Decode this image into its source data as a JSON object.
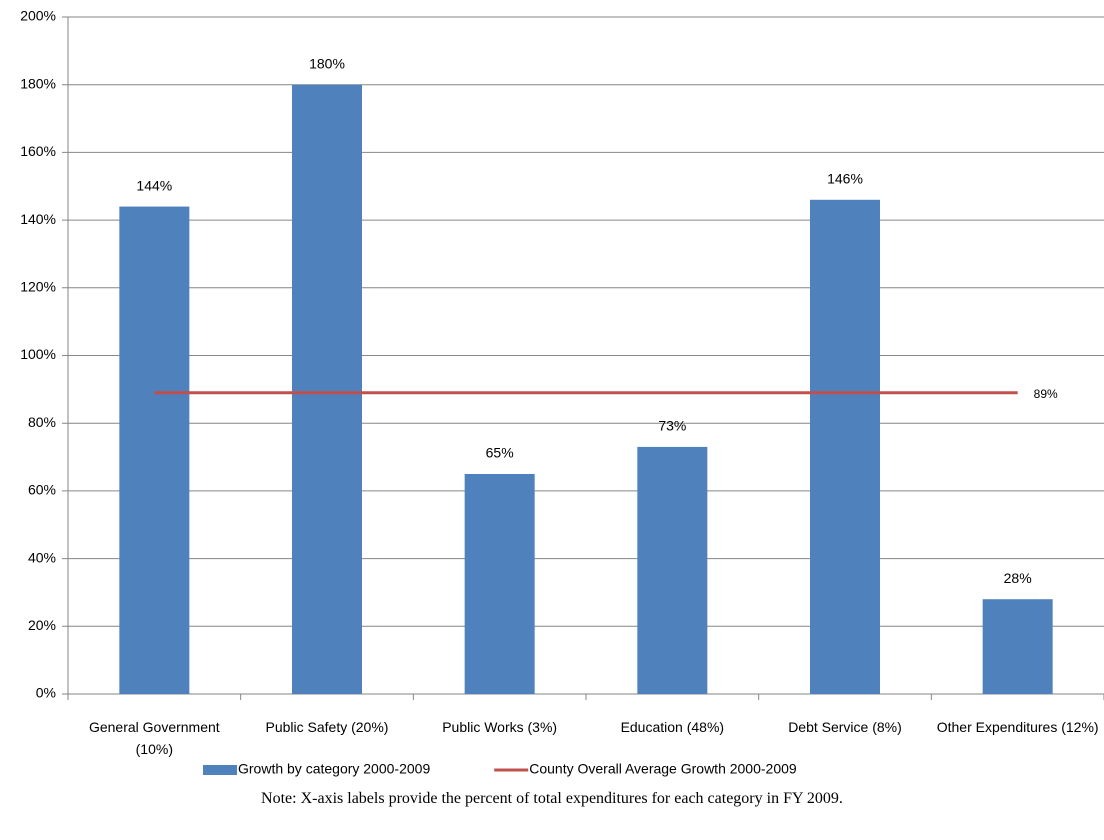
{
  "chart_data": {
    "type": "bar",
    "categories": [
      "General Government (10%)",
      "Public Safety (20%)",
      "Public Works (3%)",
      "Education (48%)",
      "Debt Service (8%)",
      "Other Expenditures (12%)"
    ],
    "series": [
      {
        "name": "Growth by category 2000-2009",
        "type": "bar",
        "color": "#4f81bd",
        "values": [
          144,
          180,
          65,
          73,
          146,
          28
        ],
        "value_labels": [
          "144%",
          "180%",
          "65%",
          "73%",
          "146%",
          "28%"
        ]
      },
      {
        "name": "County Overall Average Growth 2000-2009",
        "type": "line",
        "color": "#c0504d",
        "values": [
          89,
          89,
          89,
          89,
          89,
          89
        ],
        "value_labels": [
          null,
          null,
          null,
          null,
          null,
          "89%"
        ]
      }
    ],
    "ylim": [
      0,
      200
    ],
    "yticks": [
      {
        "value": 0,
        "label": "0%"
      },
      {
        "value": 20,
        "label": "20%"
      },
      {
        "value": 40,
        "label": "40%"
      },
      {
        "value": 60,
        "label": "60%"
      },
      {
        "value": 80,
        "label": "80%"
      },
      {
        "value": 100,
        "label": "100%"
      },
      {
        "value": 120,
        "label": "120%"
      },
      {
        "value": 140,
        "label": "140%"
      },
      {
        "value": 160,
        "label": "160%"
      },
      {
        "value": 180,
        "label": "180%"
      },
      {
        "value": 200,
        "label": "200%"
      }
    ],
    "grid": true,
    "legend": "bottom",
    "note": "Note: X-axis labels provide the percent of total expenditures for each category in FY 2009."
  }
}
